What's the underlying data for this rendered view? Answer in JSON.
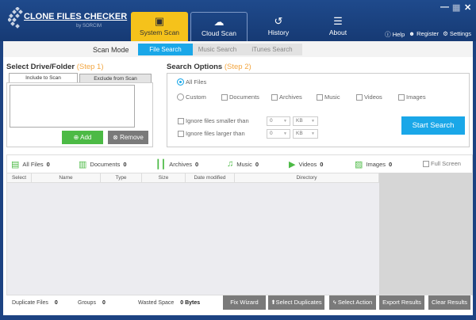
{
  "app": {
    "brand": "CLONE FILES CHECKER",
    "by": "by SORCIM"
  },
  "tabs": [
    {
      "label": "System Scan",
      "icon": "system-scan-icon"
    },
    {
      "label": "Cloud Scan",
      "icon": "cloud-scan-icon"
    },
    {
      "label": "History",
      "icon": "history-icon"
    },
    {
      "label": "About",
      "icon": "about-icon"
    }
  ],
  "links": {
    "help": "Help",
    "register": "Register",
    "settings": "Settings"
  },
  "scan_mode": {
    "label": "Scan Mode",
    "options": [
      "File Search",
      "Music Search",
      "iTunes Search"
    ],
    "selected": "File Search"
  },
  "drive": {
    "title": "Select Drive/Folder",
    "step": "(Step 1)",
    "tab_include": "Include to Scan",
    "tab_exclude": "Exclude from Scan",
    "add": "Add",
    "remove": "Remove"
  },
  "search": {
    "title": "Search Options",
    "step": "(Step 2)",
    "all_files": "All Files",
    "custom": "Custom",
    "types": [
      "Documents",
      "Archives",
      "Music",
      "Videos",
      "Images"
    ],
    "ignore_smaller": "Ignore files smaller than",
    "ignore_larger": "Ignore files larger than",
    "size_value": "0",
    "size_unit": "KB",
    "start": "Start Search"
  },
  "categories": [
    {
      "label": "All Files",
      "count": "0"
    },
    {
      "label": "Documents",
      "count": "0"
    },
    {
      "label": "Archives",
      "count": "0"
    },
    {
      "label": "Music",
      "count": "0"
    },
    {
      "label": "Videos",
      "count": "0"
    },
    {
      "label": "Images",
      "count": "0"
    }
  ],
  "full_screen": "Full Screen",
  "columns": [
    "Select",
    "Name",
    "Type",
    "Size",
    "Date modified",
    "Directory"
  ],
  "status": {
    "dup_label": "Duplicate Files",
    "dup": "0",
    "groups_label": "Groups",
    "groups": "0",
    "wasted_label": "Wasted Space",
    "wasted": "0 Bytes"
  },
  "actions": [
    "Fix Wizard",
    "Select Duplicates",
    "Select Action",
    "Export Results",
    "Clear Results"
  ],
  "colors": {
    "header": "#1d4382",
    "accent": "#f5c21b",
    "blue": "#1aa7e8",
    "green": "#4cba45"
  }
}
